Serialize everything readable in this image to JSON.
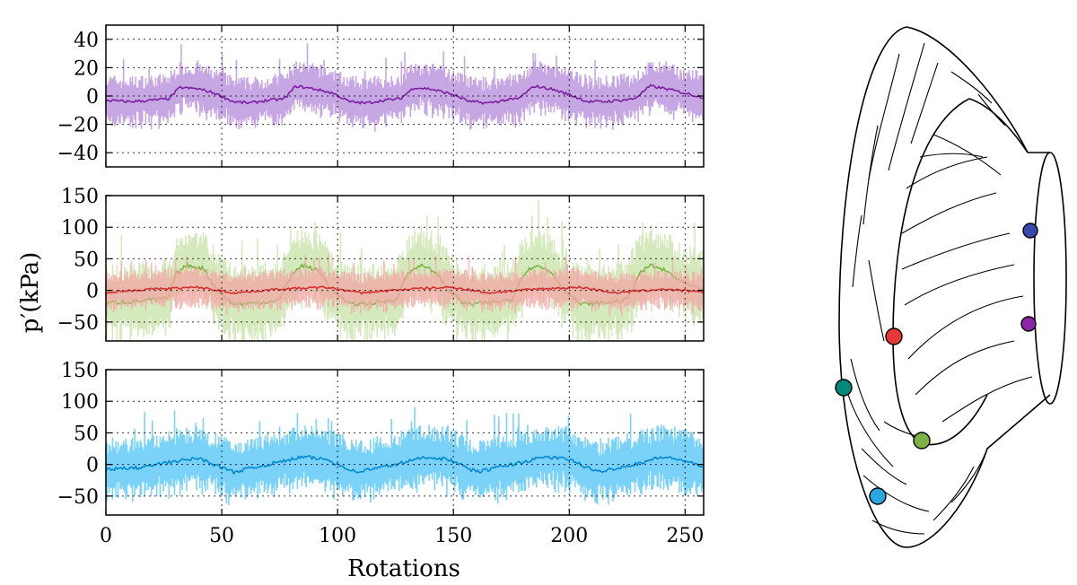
{
  "chart_data": [
    {
      "type": "line",
      "panel": "top",
      "xlabel": "",
      "ylabel": "",
      "xlim": [
        0,
        258
      ],
      "ylim": [
        -50,
        50
      ],
      "yticks": [
        -40,
        -20,
        0,
        20,
        40
      ],
      "xticks": [
        0,
        50,
        100,
        150,
        200,
        250
      ],
      "grid": true,
      "series": [
        {
          "color": "#7b1fa2",
          "band_color": "#b48ad9",
          "x": [
            0,
            10,
            20,
            27,
            32,
            40,
            47,
            55,
            62,
            70,
            77,
            82,
            90,
            98,
            105,
            112,
            120,
            127,
            133,
            140,
            150,
            157,
            165,
            172,
            178,
            185,
            192,
            200,
            208,
            215,
            222,
            228,
            235,
            242,
            250,
            258
          ],
          "y": [
            -3,
            -4,
            -3,
            -2,
            6,
            5,
            2,
            -4,
            -5,
            -3,
            -2,
            7,
            5,
            2,
            -4,
            -5,
            -3,
            -2,
            6,
            5,
            1,
            -4,
            -5,
            -3,
            -2,
            7,
            5,
            1,
            -4,
            -4,
            -3,
            -2,
            7,
            5,
            2,
            -1
          ],
          "band_halfwidth": 16
        }
      ]
    },
    {
      "type": "line",
      "panel": "middle",
      "xlabel": "",
      "ylabel": "p′(kPa)",
      "xlim": [
        0,
        258
      ],
      "ylim": [
        -80,
        150
      ],
      "yticks": [
        -50,
        0,
        50,
        100,
        150
      ],
      "xticks": [
        0,
        50,
        100,
        150,
        200,
        250
      ],
      "grid": true,
      "series": [
        {
          "color": "#7cb342",
          "band_color": "#c5e1a5",
          "x": [
            0,
            10,
            20,
            27,
            30,
            35,
            42,
            48,
            55,
            65,
            75,
            80,
            85,
            92,
            98,
            105,
            115,
            125,
            130,
            135,
            142,
            148,
            155,
            165,
            175,
            180,
            185,
            192,
            198,
            205,
            215,
            225,
            230,
            235,
            242,
            250,
            258
          ],
          "y": [
            -20,
            -18,
            -15,
            -12,
            25,
            40,
            35,
            0,
            -22,
            -20,
            -15,
            25,
            40,
            30,
            0,
            -22,
            -20,
            -15,
            25,
            40,
            30,
            0,
            -22,
            -20,
            -15,
            25,
            40,
            30,
            0,
            -22,
            -20,
            -15,
            25,
            40,
            30,
            10,
            0
          ],
          "band_halfwidth": 55
        },
        {
          "color": "#d32f2f",
          "band_color": "#f4a6a6",
          "x": [
            0,
            20,
            40,
            55,
            75,
            95,
            110,
            130,
            150,
            165,
            185,
            205,
            220,
            240,
            258
          ],
          "y": [
            -3,
            2,
            5,
            -4,
            2,
            5,
            -4,
            2,
            5,
            -4,
            2,
            5,
            -4,
            2,
            -3
          ],
          "band_halfwidth": 28
        }
      ]
    },
    {
      "type": "line",
      "panel": "bottom",
      "xlabel": "Rotations",
      "ylabel": "",
      "xlim": [
        0,
        258
      ],
      "ylim": [
        -80,
        150
      ],
      "yticks": [
        -50,
        0,
        50,
        100,
        150
      ],
      "xticks": [
        0,
        50,
        100,
        150,
        200,
        250
      ],
      "grid": true,
      "series": [
        {
          "color": "#0288d1",
          "band_color": "#4fc3f7",
          "x": [
            0,
            15,
            30,
            40,
            55,
            70,
            85,
            95,
            108,
            125,
            138,
            148,
            160,
            175,
            190,
            200,
            212,
            228,
            240,
            250,
            258
          ],
          "y": [
            -8,
            -5,
            5,
            10,
            -12,
            0,
            12,
            8,
            -12,
            0,
            12,
            8,
            -12,
            0,
            12,
            8,
            -12,
            0,
            12,
            6,
            -5
          ],
          "band_halfwidth": 45
        }
      ]
    }
  ],
  "tick_labels": {
    "top_y": [
      "40",
      "20",
      "0",
      "−20",
      "−40"
    ],
    "mid_y": [
      "150",
      "100",
      "50",
      "0",
      "−50"
    ],
    "bot_y": [
      "150",
      "100",
      "50",
      "0",
      "−50"
    ],
    "x": [
      "0",
      "50",
      "100",
      "150",
      "200",
      "250"
    ]
  },
  "sensor_colors": {
    "purple": "#8e24aa",
    "blue": "#3949ab",
    "red": "#e53935",
    "green": "#7cb342",
    "teal": "#00897b",
    "cyan": "#29a8e0"
  }
}
